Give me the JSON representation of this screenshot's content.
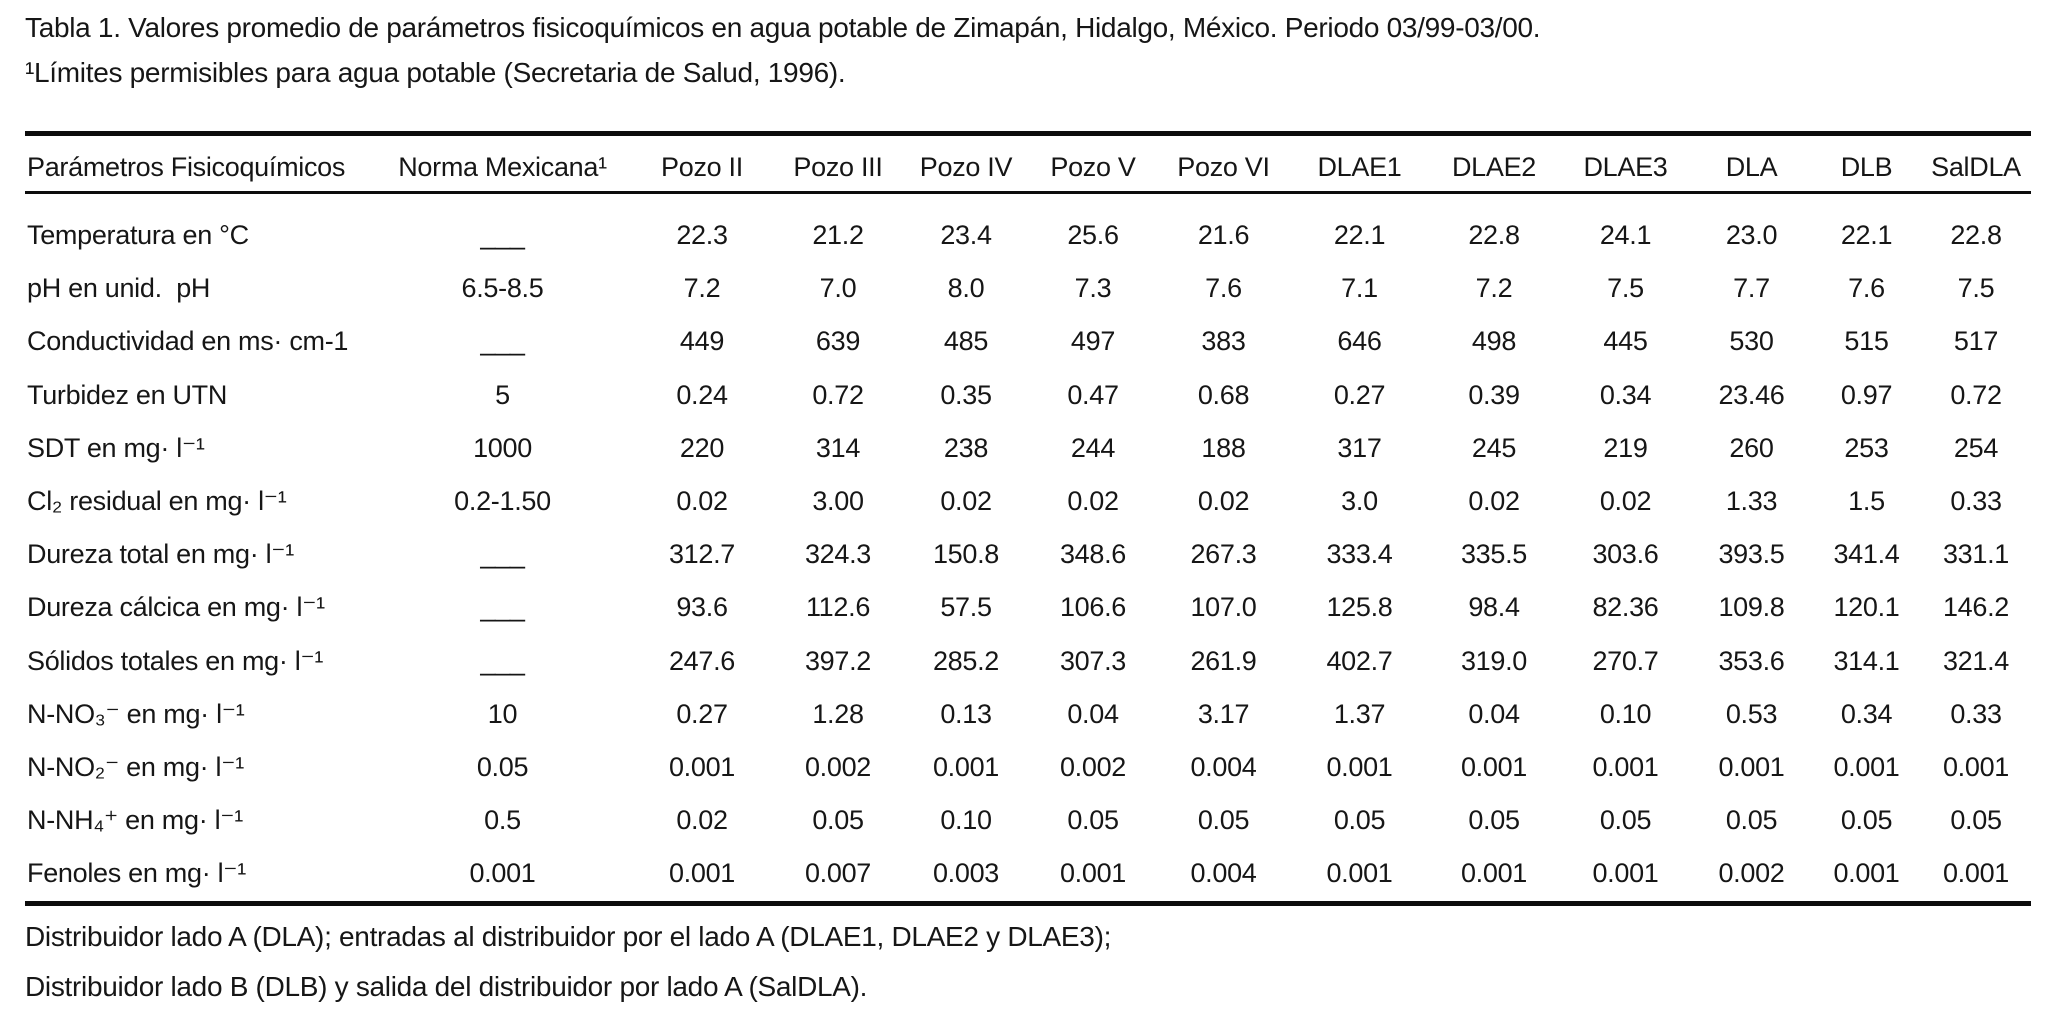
{
  "caption": {
    "line1": "Tabla 1. Valores promedio de parámetros fisicoquímicos en agua potable de Zimapán, Hidalgo, México. Periodo 03/99-03/00.",
    "line2": "¹Límites permisibles para agua potable (Secretaria de Salud, 1996)."
  },
  "table": {
    "columns": [
      "Parámetros Fisicoquímicos",
      "Norma Mexicana¹",
      "Pozo II",
      "Pozo III",
      "Pozo IV",
      "Pozo V",
      "Pozo VI",
      "DLAE1",
      "DLAE2",
      "DLAE3",
      "DLA",
      "DLB",
      "SalDLA"
    ],
    "rows": [
      [
        "Temperatura en °C",
        "___",
        "22.3",
        "21.2",
        "23.4",
        "25.6",
        "21.6",
        "22.1",
        "22.8",
        "24.1",
        "23.0",
        "22.1",
        "22.8"
      ],
      [
        "pH en unid.  pH",
        "6.5-8.5",
        "7.2",
        "7.0",
        "8.0",
        "7.3",
        "7.6",
        "7.1",
        "7.2",
        "7.5",
        "7.7",
        "7.6",
        "7.5"
      ],
      [
        "Conductividad en ms· cm-1",
        "___",
        "449",
        "639",
        "485",
        "497",
        "383",
        "646",
        "498",
        "445",
        "530",
        "515",
        "517"
      ],
      [
        "Turbidez en UTN",
        "5",
        "0.24",
        "0.72",
        "0.35",
        "0.47",
        "0.68",
        "0.27",
        "0.39",
        "0.34",
        "23.46",
        "0.97",
        "0.72"
      ],
      [
        "SDT en mg· l⁻¹",
        "1000",
        "220",
        "314",
        "238",
        "244",
        "188",
        "317",
        "245",
        "219",
        "260",
        "253",
        "254"
      ],
      [
        "Cl₂ residual en mg· l⁻¹",
        "0.2-1.50",
        "0.02",
        "3.00",
        "0.02",
        "0.02",
        "0.02",
        "3.0",
        "0.02",
        "0.02",
        "1.33",
        "1.5",
        "0.33"
      ],
      [
        "Dureza total en mg· l⁻¹",
        "___",
        "312.7",
        "324.3",
        "150.8",
        "348.6",
        "267.3",
        "333.4",
        "335.5",
        "303.6",
        "393.5",
        "341.4",
        "331.1"
      ],
      [
        "Dureza cálcica en mg· l⁻¹",
        "___",
        "93.6",
        "112.6",
        "57.5",
        "106.6",
        "107.0",
        "125.8",
        "98.4",
        "82.36",
        "109.8",
        "120.1",
        "146.2"
      ],
      [
        "Sólidos totales en mg· l⁻¹",
        "___",
        "247.6",
        "397.2",
        "285.2",
        "307.3",
        "261.9",
        "402.7",
        "319.0",
        "270.7",
        "353.6",
        "314.1",
        "321.4"
      ],
      [
        "N-NO₃⁻ en mg· l⁻¹",
        "10",
        "0.27",
        "1.28",
        "0.13",
        "0.04",
        "3.17",
        "1.37",
        "0.04",
        "0.10",
        "0.53",
        "0.34",
        "0.33"
      ],
      [
        "N-NO₂⁻ en mg· l⁻¹",
        "0.05",
        "0.001",
        "0.002",
        "0.001",
        "0.002",
        "0.004",
        "0.001",
        "0.001",
        "0.001",
        "0.001",
        "0.001",
        "0.001"
      ],
      [
        "N-NH₄⁺ en mg· l⁻¹",
        "0.5",
        "0.02",
        "0.05",
        "0.10",
        "0.05",
        "0.05",
        "0.05",
        "0.05",
        "0.05",
        "0.05",
        "0.05",
        "0.05"
      ],
      [
        "Fenoles en mg· l⁻¹",
        "0.001",
        "0.001",
        "0.007",
        "0.003",
        "0.001",
        "0.004",
        "0.001",
        "0.001",
        "0.001",
        "0.002",
        "0.001",
        "0.001"
      ]
    ]
  },
  "footnotes": [
    "Distribuidor lado A (DLA); entradas al distribuidor por el lado A (DLAE1, DLAE2 y DLAE3);",
    "Distribuidor lado B (DLB) y salida del distribuidor por lado A (SalDLA)."
  ]
}
